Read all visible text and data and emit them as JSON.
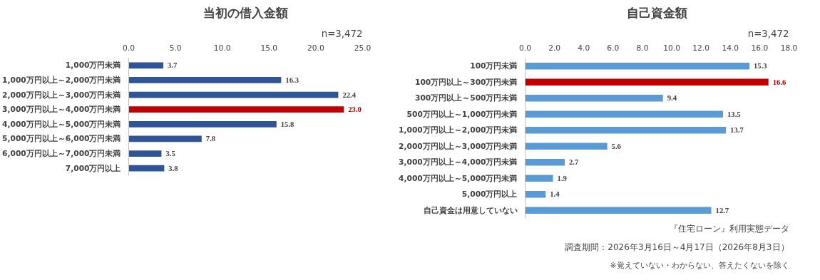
{
  "chart_data": [
    {
      "type": "bar",
      "orientation": "horizontal",
      "title": "当初の借入金額",
      "subtitle": "n=3,472",
      "categories": [
        "1,000万円未満",
        "1,000万円以上～2,000万円未満",
        "2,000万円以上～3,000万円未満",
        "3,000万円以上～4,000万円未満",
        "4,000万円以上～5,000万円未満",
        "5,000万円以上～6,000万円未満",
        "6,000万円以上～7,000万円未満",
        "7,000万円以上"
      ],
      "values": [
        3.7,
        16.3,
        22.4,
        23.0,
        15.8,
        7.8,
        3.5,
        3.8
      ],
      "colors": [
        "#2f5597",
        "#2f5597",
        "#2f5597",
        "#c00000",
        "#2f5597",
        "#2f5597",
        "#2f5597",
        "#2f5597"
      ],
      "value_labels": [
        "3.7",
        "16.3",
        "22.4",
        "23.0",
        "15.8",
        "7.8",
        "3.5",
        "3.8"
      ],
      "xlim": [
        0,
        25
      ],
      "xticks": [
        {
          "value": 0,
          "label": "0.0"
        },
        {
          "value": 5,
          "label": "5.0"
        },
        {
          "value": 10,
          "label": "10.0"
        },
        {
          "value": 15,
          "label": "15.0"
        },
        {
          "value": 20,
          "label": "20.0"
        },
        {
          "value": 25,
          "label": "25.0"
        }
      ],
      "grid": false
    },
    {
      "type": "bar",
      "orientation": "horizontal",
      "title": "自己資金額",
      "subtitle": "n=3,472",
      "categories": [
        "100万円未満",
        "100万円以上～300万円未満",
        "300万円以上～500万円未満",
        "500万円以上～1,000万円未満",
        "1,000万円以上～2,000万円未満",
        "2,000万円以上～3,000万円未満",
        "3,000万円以上～4,000万円未満",
        "4,000万円以上～5,000万円未満",
        "5,000万円以上",
        "自己資金は用意していない"
      ],
      "values": [
        15.3,
        16.6,
        9.4,
        13.5,
        13.7,
        5.6,
        2.7,
        1.9,
        1.4,
        12.7
      ],
      "colors": [
        "#5b9bd5",
        "#c00000",
        "#5b9bd5",
        "#5b9bd5",
        "#5b9bd5",
        "#5b9bd5",
        "#5b9bd5",
        "#5b9bd5",
        "#5b9bd5",
        "#5b9bd5"
      ],
      "value_labels": [
        "15.3",
        "16.6",
        "9.4",
        "13.5",
        "13.7",
        "5.6",
        "2.7",
        "1.9",
        "1.4",
        "12.7"
      ],
      "xlim": [
        0,
        18
      ],
      "xticks": [
        {
          "value": 0,
          "label": "0.0"
        },
        {
          "value": 2,
          "label": "2.0"
        },
        {
          "value": 4,
          "label": "4.0"
        },
        {
          "value": 6,
          "label": "6.0"
        },
        {
          "value": 8,
          "label": "8.0"
        },
        {
          "value": 10,
          "label": "10.0"
        },
        {
          "value": 12,
          "label": "12.0"
        },
        {
          "value": 14,
          "label": "14.0"
        },
        {
          "value": 16,
          "label": "16.0"
        },
        {
          "value": 18,
          "label": "18.0"
        }
      ],
      "grid": false,
      "annotations": [
        "『住宅ローン』利用実態データ",
        "調査期間：2026年3月16日～4月17日（2026年8月3日）",
        "※覚えていない・わからない、答えたくないを除く"
      ]
    }
  ]
}
